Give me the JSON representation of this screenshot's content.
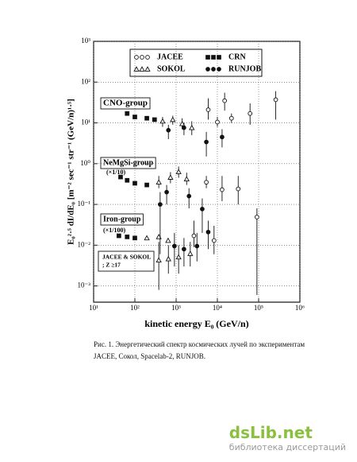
{
  "chart_data": {
    "type": "scatter",
    "x_label": "kinetic energy E₀ (GeV/n)",
    "y_label": "E₀²·⁵ dI/dE₀ [m⁻² sec⁻¹ str⁻¹ (GeV/n)¹·⁵]",
    "log_x": true,
    "log_y": true,
    "grid": true,
    "xlim": [
      10,
      1000000
    ],
    "ylim": [
      0.0004,
      1000
    ],
    "xticks": [
      {
        "value": 10,
        "label": "10¹"
      },
      {
        "value": 100,
        "label": "10²"
      },
      {
        "value": 1000,
        "label": "10³"
      },
      {
        "value": 10000,
        "label": "10⁴"
      },
      {
        "value": 100000,
        "label": "10⁵"
      },
      {
        "value": 1000000,
        "label": "10⁶"
      }
    ],
    "yticks": [
      {
        "value": 0.001,
        "label": "10⁻³"
      },
      {
        "value": 0.01,
        "label": "10⁻²"
      },
      {
        "value": 0.1,
        "label": "10⁻¹"
      },
      {
        "value": 1,
        "label": "10⁰"
      },
      {
        "value": 10,
        "label": "10¹"
      },
      {
        "value": 100,
        "label": "10²"
      },
      {
        "value": 1000,
        "label": "10³"
      }
    ],
    "legend_position": "top",
    "series": [
      {
        "name": "JACEE",
        "marker": "open-circle",
        "color": "#111111",
        "x": [
          6000,
          15000,
          62000,
          260000,
          10000,
          22000,
          5400,
          13000,
          32000,
          2700,
          8300,
          91000
        ],
        "y": [
          21,
          35,
          17,
          37,
          10.5,
          13,
          0.35,
          0.23,
          0.24,
          0.017,
          0.013,
          0.049
        ],
        "ylo": [
          12,
          20,
          9,
          12,
          8,
          10,
          0.25,
          0.12,
          0.1,
          0.009,
          0.006,
          0.0006
        ],
        "yhi": [
          40,
          55,
          30,
          60,
          14,
          17,
          0.5,
          0.5,
          0.5,
          0.04,
          0.03,
          0.08
        ]
      },
      {
        "name": "CRN",
        "marker": "filled-square",
        "color": "#111111",
        "x": [
          65,
          100,
          195,
          300,
          45,
          65,
          100,
          195,
          41,
          65,
          100
        ],
        "y": [
          17,
          14,
          13,
          12,
          0.47,
          0.39,
          0.33,
          0.3,
          0.017,
          0.016,
          0.015
        ],
        "ylo": [
          null,
          null,
          null,
          null,
          null,
          null,
          null,
          null,
          null,
          null,
          null
        ],
        "yhi": [
          null,
          null,
          null,
          null,
          null,
          null,
          null,
          null,
          null,
          null,
          null
        ]
      },
      {
        "name": "SOKOL",
        "marker": "open-triangle",
        "color": "#111111",
        "x": [
          470,
          830,
          1400,
          2400,
          380,
          730,
          1150,
          1800,
          195,
          380,
          640,
          380,
          650,
          1150,
          2200
        ],
        "y": [
          11,
          12,
          9.5,
          7.6,
          0.35,
          0.46,
          0.63,
          0.42,
          0.015,
          0.016,
          0.013,
          0.0043,
          0.0046,
          0.0051,
          0.0062
        ],
        "ylo": [
          8,
          9,
          7,
          5,
          0.25,
          0.33,
          0.45,
          0.3,
          null,
          null,
          null,
          0.0008,
          0.002,
          0.002,
          0.003
        ],
        "yhi": [
          14,
          15,
          13,
          11,
          0.5,
          0.62,
          0.85,
          0.6,
          null,
          null,
          null,
          0.012,
          0.01,
          0.01,
          0.012
        ]
      },
      {
        "name": "RUNJOB",
        "marker": "filled-circle",
        "color": "#111111",
        "x": [
          650,
          5400,
          13000,
          1550,
          590,
          2050,
          4300,
          410,
          910,
          1550,
          3200,
          6000
        ],
        "y": [
          6.6,
          3.4,
          4.5,
          7.6,
          0.2,
          0.16,
          0.077,
          0.1,
          0.0095,
          0.008,
          0.0095,
          0.021
        ],
        "ylo": [
          4,
          1.5,
          2.5,
          5,
          0.1,
          0.08,
          0.02,
          0.006,
          0.003,
          0.003,
          0.004,
          0.008
        ],
        "yhi": [
          9,
          6,
          7,
          10,
          0.3,
          0.25,
          0.14,
          0.2,
          0.02,
          0.015,
          0.02,
          0.04
        ]
      }
    ],
    "annotations": [
      "CNO-group",
      "NeMgSi-group",
      "(×1/10)",
      "Iron-group",
      "(×1/100)",
      "JACEE & SOKOL",
      "; Z ≥17"
    ]
  },
  "caption": "Рис. 1. Энергетический спектр космических лучей по экспериментам JACEE, Сокол, Spacelab-2, RUNJOB.",
  "watermark": {
    "logo": "dsLib.net",
    "subtitle": "библиотека диссертаций"
  }
}
